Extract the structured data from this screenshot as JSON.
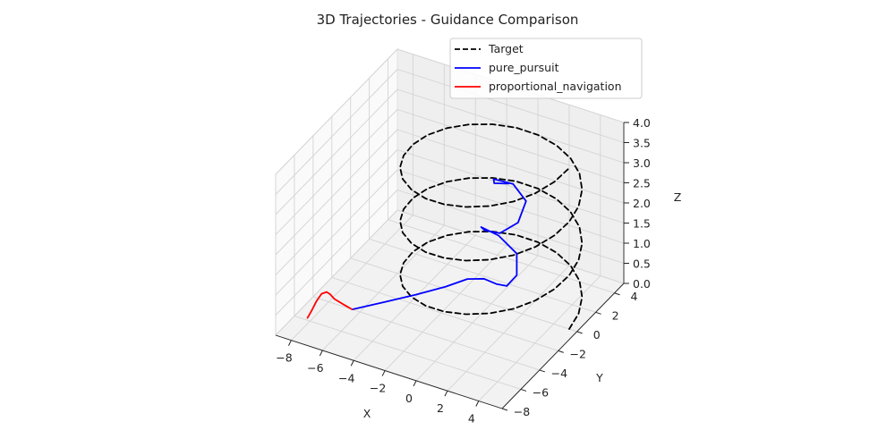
{
  "chart_data": {
    "type": "line",
    "projection": "3d",
    "title": "3D Trajectories - Guidance Comparison",
    "xlabel": "X",
    "ylabel": "Y",
    "zlabel": "Z",
    "xlim": [
      -9,
      5.5
    ],
    "ylim": [
      -8,
      5
    ],
    "zlim": [
      0,
      4
    ],
    "x_ticks": [
      "−8",
      "−6",
      "−4",
      "−2",
      "0",
      "2",
      "4"
    ],
    "y_ticks": [
      "−8",
      "−6",
      "−4",
      "−2",
      "0",
      "2",
      "4"
    ],
    "z_ticks": [
      "0.0",
      "0.5",
      "1.0",
      "1.5",
      "2.0",
      "2.5",
      "3.0",
      "3.5",
      "4.0"
    ],
    "grid": true,
    "legend": {
      "position": "top-right"
    },
    "series": [
      {
        "name": "Target",
        "style": "dashed",
        "color": "#000000",
        "points": [
          [
            5.0,
            0.0,
            0.0
          ],
          [
            4.83,
            1.29,
            0.12
          ],
          [
            4.33,
            2.5,
            0.25
          ],
          [
            3.54,
            3.54,
            0.38
          ],
          [
            2.5,
            4.33,
            0.5
          ],
          [
            1.29,
            4.83,
            0.62
          ],
          [
            0.0,
            5.0,
            0.75
          ],
          [
            -1.29,
            4.83,
            0.88
          ],
          [
            -2.5,
            4.33,
            1.0
          ],
          [
            -3.54,
            3.54,
            1.12
          ],
          [
            -4.33,
            2.5,
            1.25
          ],
          [
            -4.83,
            1.29,
            1.38
          ],
          [
            -5.0,
            0.0,
            1.5
          ],
          [
            -4.83,
            -1.29,
            1.62
          ],
          [
            -4.33,
            -2.5,
            1.75
          ],
          [
            -3.54,
            -3.54,
            1.88
          ],
          [
            -2.5,
            -4.33,
            2.0
          ],
          [
            -1.29,
            -4.83,
            2.12
          ],
          [
            0.0,
            -5.0,
            2.25
          ],
          [
            1.29,
            -4.83,
            2.38
          ],
          [
            2.5,
            -4.33,
            2.5
          ],
          [
            3.54,
            -3.54,
            2.62
          ],
          [
            4.33,
            -2.5,
            2.75
          ],
          [
            4.83,
            -1.29,
            2.88
          ],
          [
            5.0,
            0.0,
            3.0
          ],
          [
            4.83,
            1.29,
            3.12
          ],
          [
            4.33,
            2.5,
            3.25
          ],
          [
            3.54,
            3.54,
            3.38
          ],
          [
            2.5,
            4.33,
            3.5
          ],
          [
            1.29,
            4.83,
            3.62
          ],
          [
            0.0,
            5.0,
            3.75
          ],
          [
            -1.29,
            4.83,
            3.88
          ],
          [
            -2.5,
            4.33,
            4.0
          ],
          [
            -3.54,
            3.54,
            4.12
          ],
          [
            -4.33,
            2.5,
            4.25
          ],
          [
            -4.83,
            1.29,
            4.38
          ],
          [
            -5.0,
            0.0,
            4.5
          ],
          [
            -4.83,
            -1.29,
            4.62
          ],
          [
            -4.33,
            -2.5,
            4.75
          ],
          [
            -3.54,
            -3.54,
            4.88
          ],
          [
            -2.5,
            -4.33,
            5.0
          ],
          [
            -1.29,
            -4.83,
            5.12
          ],
          [
            0.0,
            -5.0,
            5.25
          ],
          [
            1.29,
            -4.83,
            5.38
          ],
          [
            2.5,
            -4.33,
            5.5
          ],
          [
            3.54,
            -3.54,
            5.62
          ],
          [
            4.33,
            -2.5,
            5.75
          ],
          [
            4.83,
            -1.29,
            5.88
          ],
          [
            5.0,
            0.0,
            6.0
          ],
          [
            4.83,
            1.29,
            6.12
          ],
          [
            4.33,
            2.5,
            6.25
          ],
          [
            3.54,
            3.54,
            6.38
          ],
          [
            2.5,
            4.33,
            6.5
          ],
          [
            1.29,
            4.83,
            6.62
          ],
          [
            0.0,
            5.0,
            6.75
          ],
          [
            -1.29,
            4.83,
            6.88
          ],
          [
            -2.5,
            4.33,
            7.0
          ],
          [
            -3.54,
            3.54,
            7.12
          ],
          [
            -4.33,
            2.5,
            7.25
          ],
          [
            -4.83,
            1.29,
            7.38
          ],
          [
            -5.0,
            0.0,
            7.5
          ],
          [
            -4.83,
            -1.29,
            7.62
          ],
          [
            -4.33,
            -2.5,
            7.75
          ],
          [
            -3.54,
            -3.54,
            7.88
          ],
          [
            -2.5,
            -4.33,
            8.0
          ],
          [
            -1.29,
            -4.83,
            8.12
          ],
          [
            0.0,
            -5.0,
            8.25
          ],
          [
            1.29,
            -4.83,
            8.38
          ],
          [
            2.5,
            -4.33,
            8.5
          ],
          [
            3.54,
            -3.54,
            8.62
          ],
          [
            4.33,
            -2.5,
            8.75
          ],
          [
            4.83,
            -1.29,
            8.88
          ],
          [
            5.0,
            0.0,
            9.0
          ]
        ]
      },
      {
        "name": "pure_pursuit",
        "style": "solid",
        "color": "#0000ff",
        "points": [
          [
            -6.5,
            -4.0,
            0.0
          ],
          [
            -5.0,
            -3.0,
            0.3
          ],
          [
            -3.5,
            -2.2,
            0.7
          ],
          [
            -2.0,
            -1.5,
            1.2
          ],
          [
            -0.8,
            -1.2,
            1.8
          ],
          [
            0.5,
            -1.6,
            2.4
          ],
          [
            1.8,
            -2.4,
            2.9
          ],
          [
            2.8,
            -3.0,
            3.4
          ],
          [
            3.2,
            -2.6,
            3.9
          ],
          [
            2.6,
            -1.6,
            4.4
          ],
          [
            1.2,
            -1.2,
            4.8
          ],
          [
            0.2,
            -1.4,
            5.1
          ],
          [
            0.8,
            -2.0,
            5.4
          ],
          [
            2.0,
            -2.4,
            5.8
          ],
          [
            2.8,
            -1.8,
            6.3
          ],
          [
            2.6,
            -0.6,
            6.8
          ],
          [
            1.4,
            0.0,
            7.1
          ],
          [
            0.4,
            -0.4,
            7.3
          ],
          [
            0.8,
            -1.0,
            7.5
          ],
          [
            1.6,
            -0.8,
            7.6
          ]
        ]
      },
      {
        "name": "proportional_navigation",
        "style": "solid",
        "color": "#ff0000",
        "points": [
          [
            -6.5,
            -4.0,
            0.0
          ],
          [
            -6.8,
            -4.4,
            0.4
          ],
          [
            -7.1,
            -4.9,
            0.9
          ],
          [
            -7.2,
            -5.2,
            1.3
          ],
          [
            -7.3,
            -5.4,
            1.5
          ],
          [
            -7.5,
            -5.6,
            1.45
          ],
          [
            -7.7,
            -5.8,
            1.1
          ],
          [
            -7.9,
            -6.0,
            0.6
          ],
          [
            -8.1,
            -6.1,
            0.2
          ]
        ]
      }
    ]
  }
}
